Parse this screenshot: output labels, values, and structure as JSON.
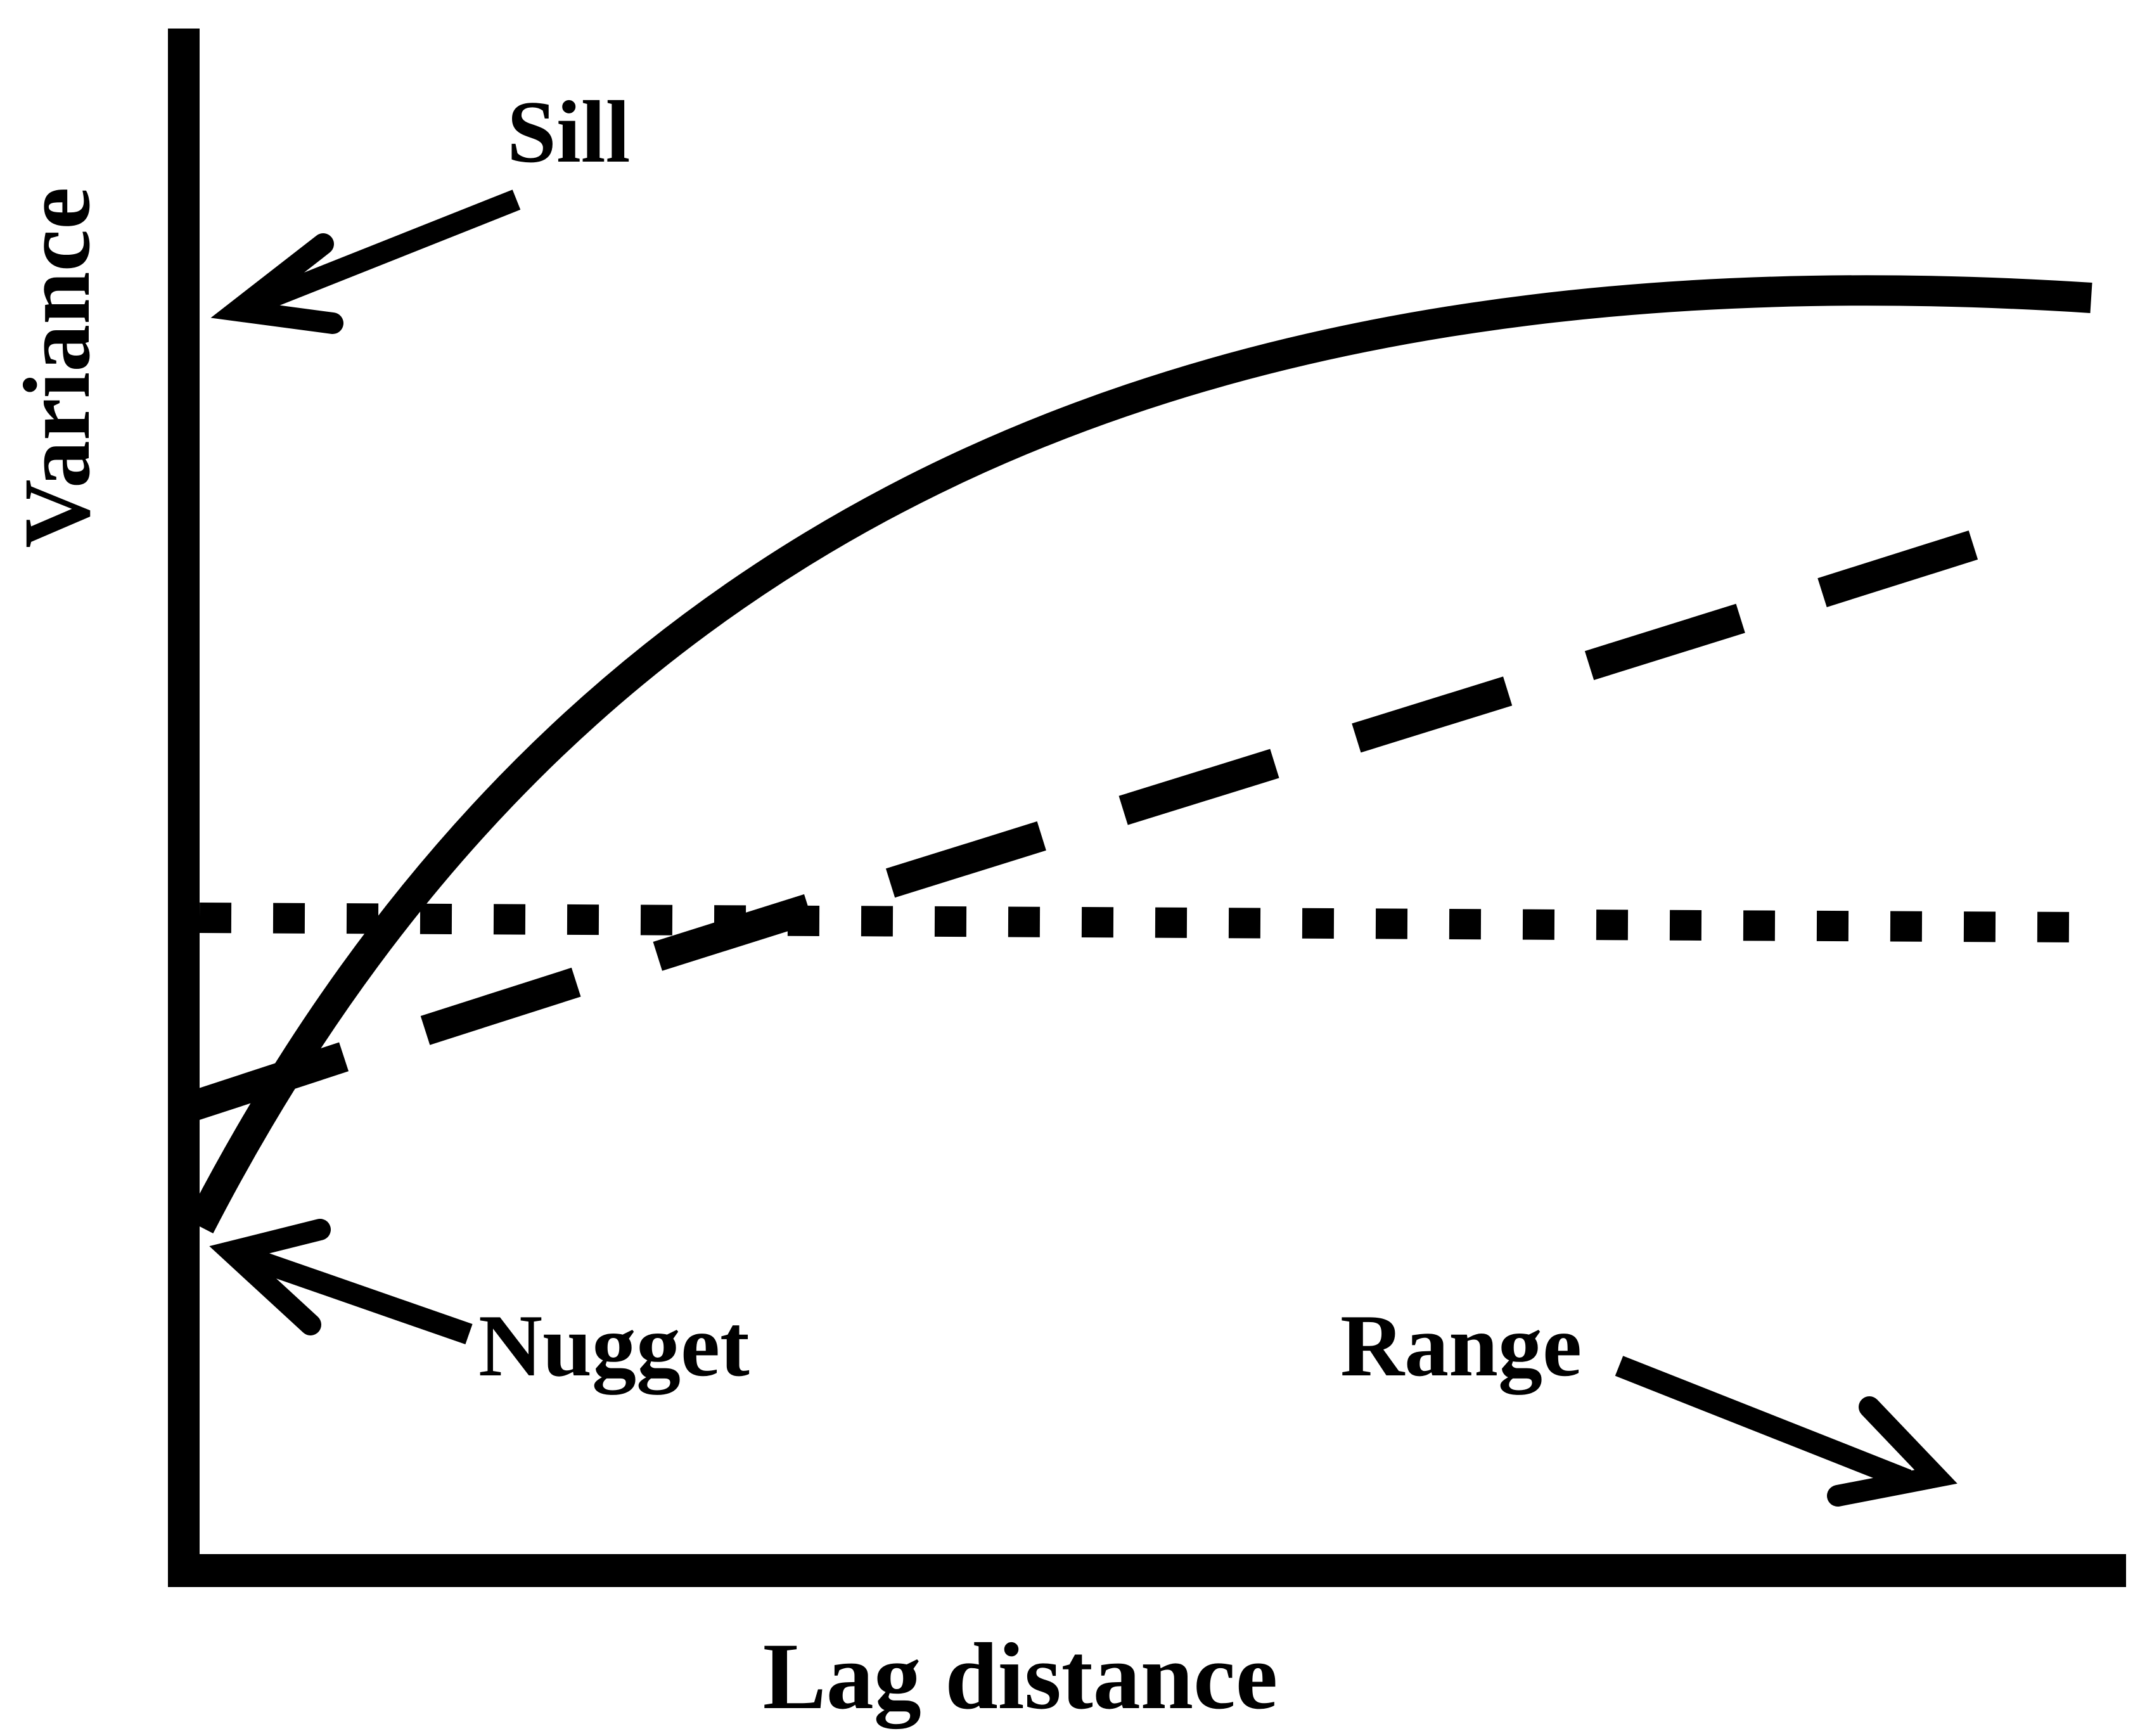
{
  "diagram": {
    "labels": {
      "y_axis": "Variance",
      "x_axis": "Lag distance",
      "sill": "Sill",
      "nugget": "Nugget",
      "range": "Range"
    },
    "line_color": "#000000",
    "background": "#ffffff"
  }
}
